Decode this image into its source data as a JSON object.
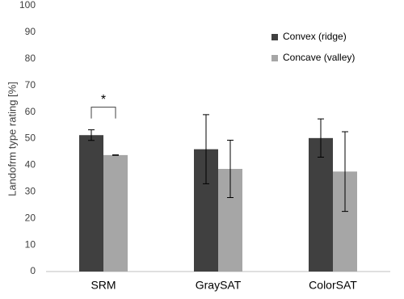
{
  "chart_data": {
    "type": "bar",
    "y_label": "Landofrm type rating [%]",
    "categories": [
      "SRM",
      "GraySAT",
      "ColorSAT"
    ],
    "series": [
      {
        "name": "Convex (ridge)",
        "color": "#404040",
        "values": [
          51.3,
          46,
          50.2
        ],
        "errors": [
          2,
          13,
          7.2
        ]
      },
      {
        "name": "Concave (valley)",
        "color": "#a6a6a6",
        "values": [
          43.8,
          38.6,
          37.6
        ],
        "errors": [
          0.1,
          10.8,
          15
        ]
      }
    ],
    "ylim": [
      0,
      100
    ],
    "yticks": [
      0,
      10,
      20,
      30,
      40,
      50,
      60,
      70,
      80,
      90,
      100
    ],
    "grid": false,
    "legend": "upper right",
    "annotations": [
      {
        "text": "*",
        "category": 0
      }
    ]
  }
}
